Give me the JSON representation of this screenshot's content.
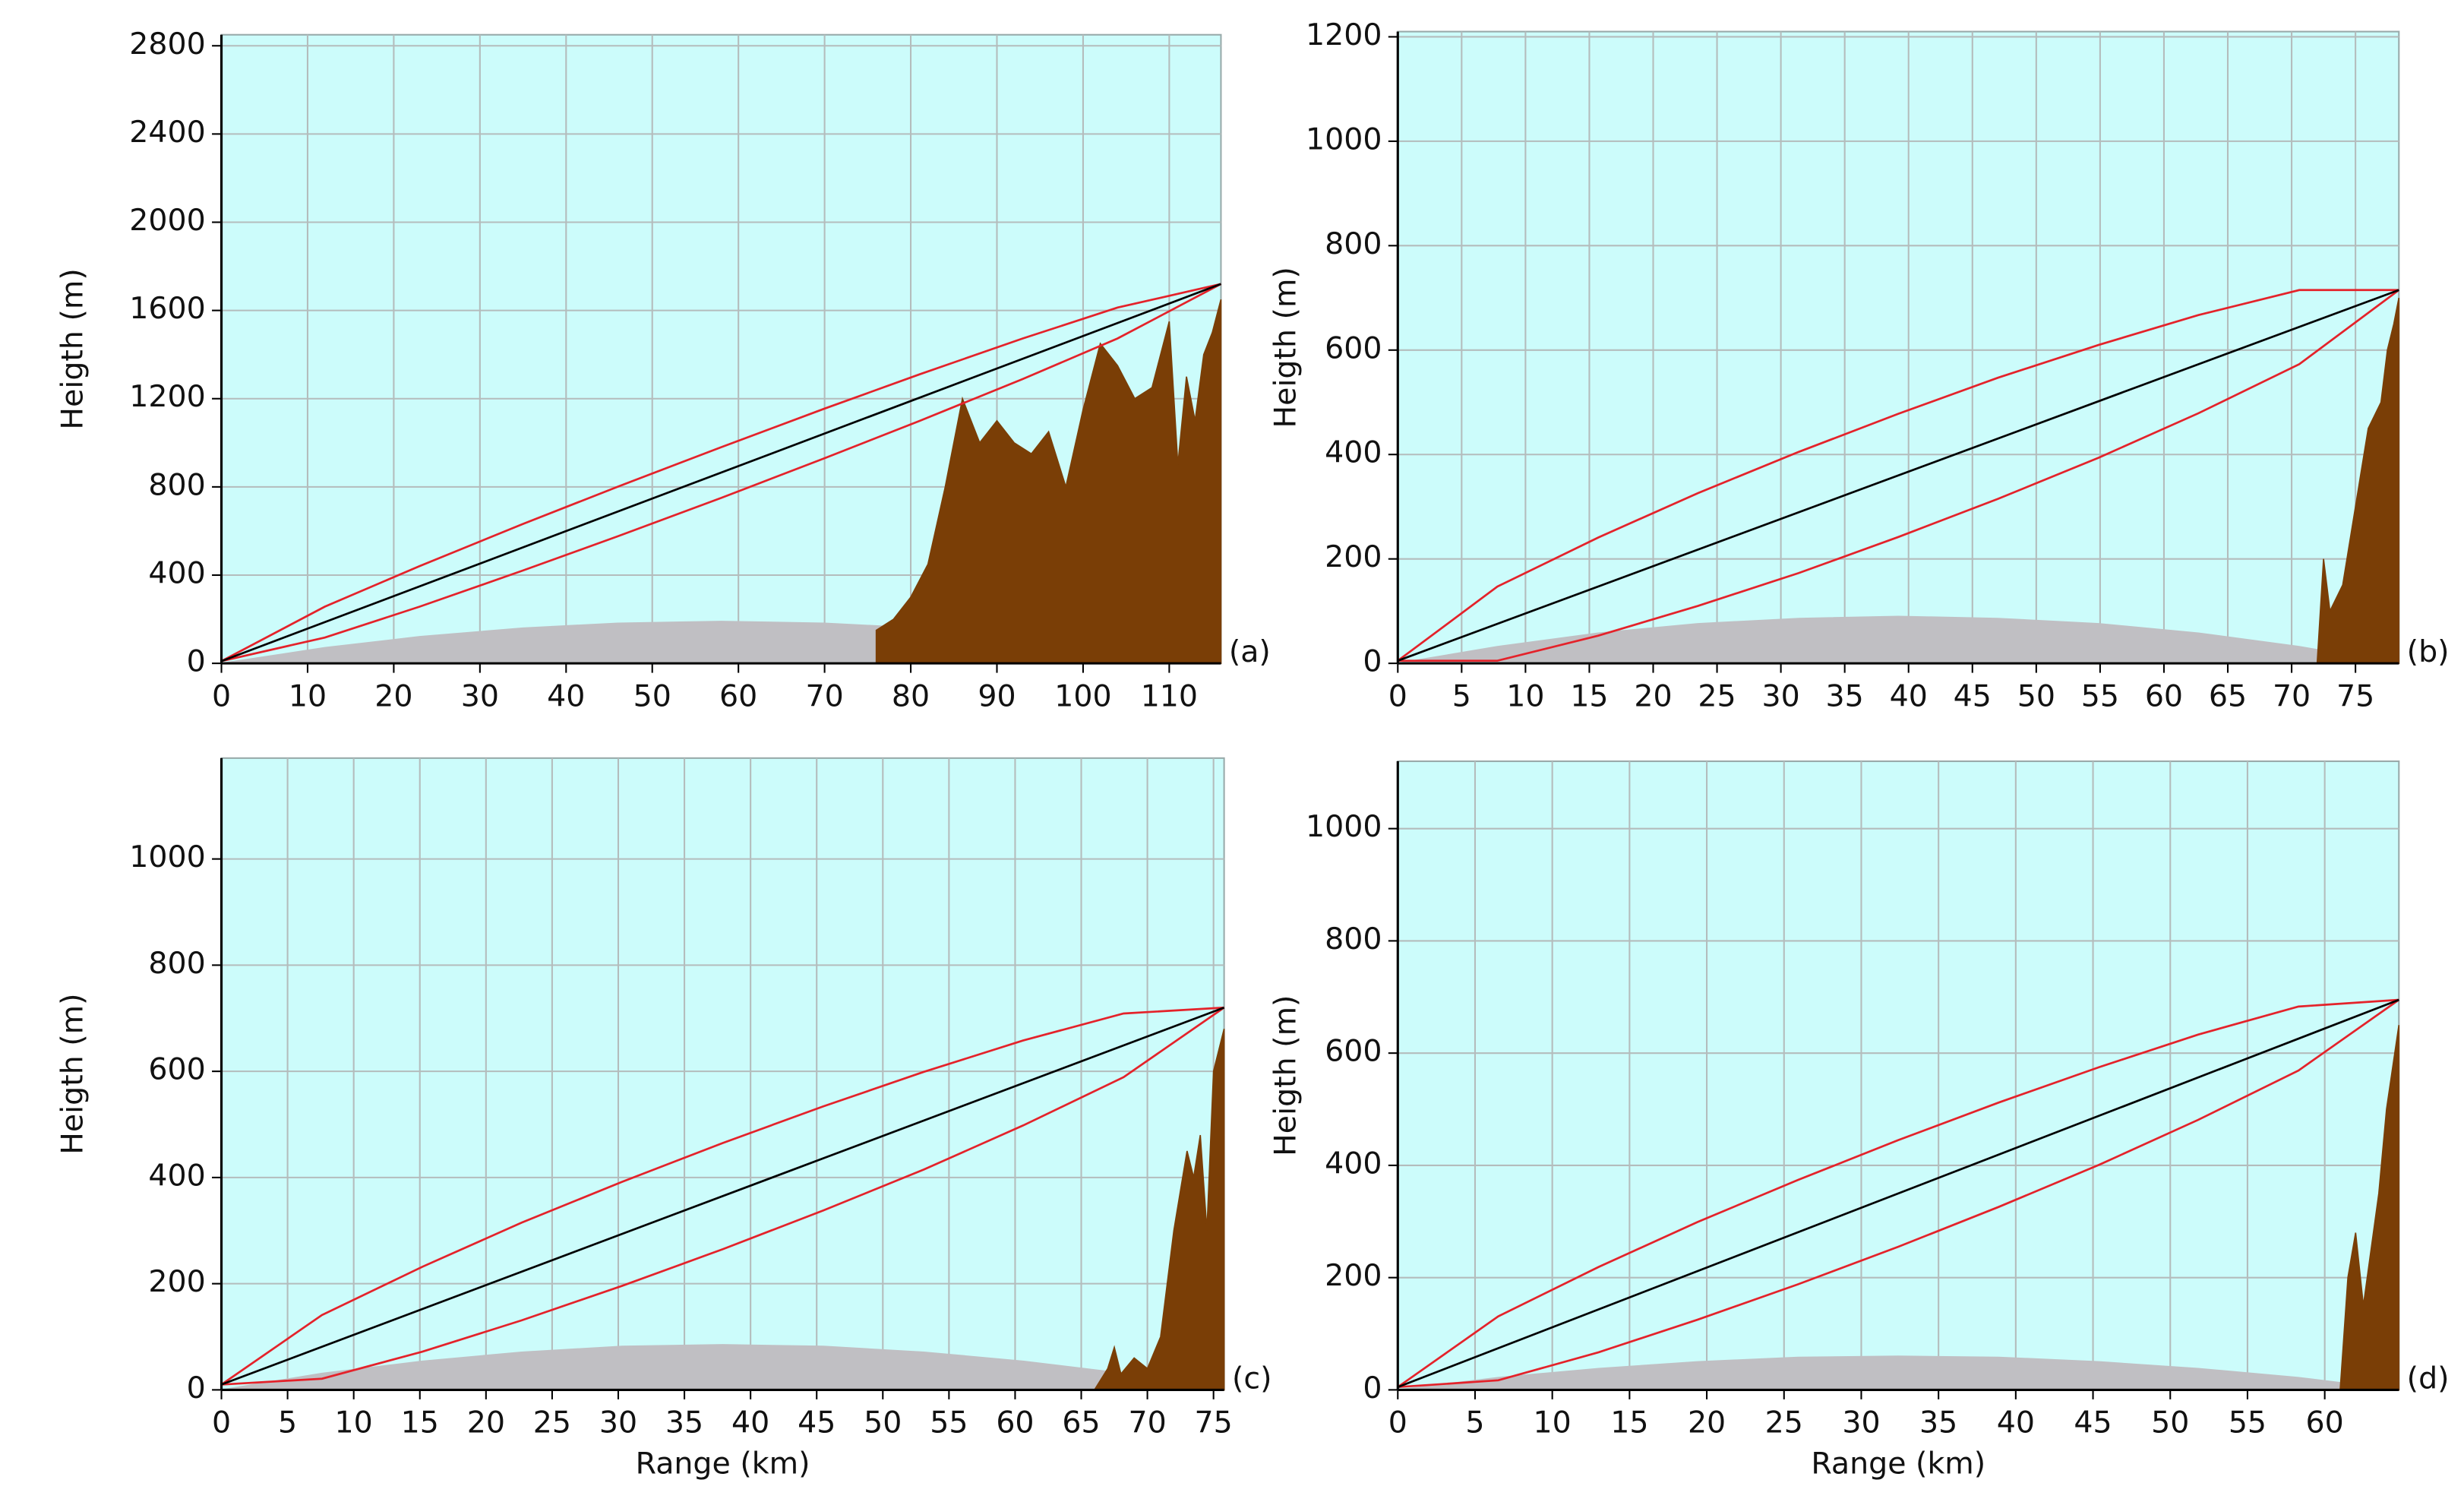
{
  "chart_data": [
    {
      "type": "line",
      "label": "(a)",
      "ylabel": "Heigth (m)",
      "xlim": [
        0,
        116
      ],
      "ylim": [
        0,
        2850
      ],
      "xticks": [
        0,
        10,
        20,
        30,
        40,
        50,
        60,
        70,
        80,
        90,
        100,
        110
      ],
      "yticks": [
        0,
        400,
        800,
        1200,
        1600,
        2000,
        2400,
        2800
      ],
      "grid": true,
      "series": [
        {
          "style": "area",
          "color": "#c0bfc3",
          "x": [
            0,
            12,
            23,
            35,
            46,
            58,
            70,
            81,
            93,
            104,
            116
          ],
          "values": [
            0,
            71,
            121,
            160,
            182,
            190,
            182,
            160,
            121,
            71,
            0
          ]
        },
        {
          "style": "area",
          "color": "#7a3e06",
          "x": [
            76,
            78,
            80,
            82,
            84,
            86,
            87,
            88,
            90,
            92,
            94,
            96,
            98,
            100,
            102,
            104,
            106,
            108,
            110,
            111,
            112,
            113,
            114,
            115,
            116
          ],
          "values": [
            150,
            200,
            300,
            450,
            800,
            1200,
            1100,
            1000,
            1100,
            1000,
            950,
            1050,
            800,
            1150,
            1450,
            1350,
            1200,
            1250,
            1550,
            900,
            1300,
            1100,
            1400,
            1500,
            1650
          ]
        },
        {
          "style": "line",
          "color": "#e4222a",
          "x": [
            0,
            12,
            23,
            35,
            46,
            58,
            70,
            81,
            93,
            104,
            116
          ],
          "values": [
            10,
            257,
            441,
            632,
            801,
            980,
            1155,
            1310,
            1473,
            1613,
            1720
          ]
        },
        {
          "style": "line",
          "color": "#e4222a",
          "x": [
            0,
            12,
            23,
            35,
            46,
            58,
            70,
            81,
            93,
            104,
            116
          ],
          "values": [
            10,
            117,
            257,
            421,
            576,
            750,
            930,
            1099,
            1289,
            1473,
            1720
          ]
        },
        {
          "style": "line",
          "color": "#000000",
          "x": [
            0,
            116
          ],
          "values": [
            10,
            1720
          ]
        }
      ]
    },
    {
      "type": "line",
      "label": "(b)",
      "ylabel": "Heigth (m)",
      "xlim": [
        0,
        78.4
      ],
      "ylim": [
        0,
        1210
      ],
      "xticks": [
        0,
        5,
        10,
        15,
        20,
        25,
        30,
        35,
        40,
        45,
        50,
        55,
        60,
        65,
        70,
        75
      ],
      "yticks": [
        0,
        200,
        400,
        600,
        800,
        1000,
        1200
      ],
      "grid": true,
      "series": [
        {
          "style": "area",
          "color": "#c0bfc3",
          "x": [
            0,
            7.8,
            15.7,
            23.5,
            31.4,
            39.2,
            47,
            54.9,
            62.7,
            70.6,
            78.4
          ],
          "values": [
            0,
            32,
            58,
            76,
            86,
            90,
            86,
            76,
            58,
            32,
            0
          ]
        },
        {
          "style": "area",
          "color": "#7a3e06",
          "x": [
            72,
            72.5,
            73,
            74,
            75,
            76,
            77,
            77.5,
            78,
            78.4
          ],
          "values": [
            0,
            200,
            100,
            150,
            300,
            450,
            500,
            600,
            650,
            700
          ]
        },
        {
          "style": "line",
          "color": "#e4222a",
          "x": [
            0,
            7.8,
            15.7,
            23.5,
            31.4,
            39.2,
            47,
            54.9,
            62.7,
            70.6,
            78.4
          ],
          "values": [
            5,
            147,
            241,
            326,
            405,
            478,
            547,
            610,
            667,
            715,
            715
          ]
        },
        {
          "style": "line",
          "color": "#e4222a",
          "x": [
            0,
            7.8,
            15.7,
            23.5,
            31.4,
            39.2,
            47,
            54.9,
            62.7,
            70.6,
            78.4
          ],
          "values": [
            5,
            5,
            53,
            110,
            173,
            242,
            315,
            394,
            479,
            573,
            715
          ]
        },
        {
          "style": "line",
          "color": "#000000",
          "x": [
            0,
            78.4
          ],
          "values": [
            5,
            715
          ]
        }
      ]
    },
    {
      "type": "line",
      "label": "(c)",
      "ylabel": "Heigth (m)",
      "xlabel": "Range (km)",
      "xlim": [
        0,
        75.8
      ],
      "ylim": [
        0,
        1190
      ],
      "xticks": [
        0,
        5,
        10,
        15,
        20,
        25,
        30,
        35,
        40,
        45,
        50,
        55,
        60,
        65,
        70,
        75
      ],
      "yticks": [
        0,
        200,
        400,
        600,
        800,
        1000
      ],
      "grid": true,
      "series": [
        {
          "style": "area",
          "color": "#c0bfc3",
          "x": [
            0,
            7.6,
            15.2,
            22.7,
            30.3,
            37.9,
            45.5,
            53.1,
            60.6,
            68.2,
            75.8
          ],
          "values": [
            0,
            31,
            54,
            71,
            82,
            85,
            82,
            71,
            54,
            31,
            0
          ]
        },
        {
          "style": "area",
          "color": "#7a3e06",
          "x": [
            66,
            67,
            67.5,
            68,
            69,
            70,
            71,
            72,
            73,
            73.5,
            74,
            74.5,
            75,
            75.8
          ],
          "values": [
            0,
            40,
            80,
            30,
            60,
            40,
            100,
            300,
            450,
            400,
            480,
            300,
            600,
            680
          ]
        },
        {
          "style": "line",
          "color": "#e4222a",
          "x": [
            0,
            7.6,
            15.2,
            22.7,
            30.3,
            37.9,
            45.5,
            53.1,
            60.6,
            68.2,
            75.8
          ],
          "values": [
            10,
            141,
            232,
            315,
            392,
            465,
            534,
            599,
            658,
            709,
            720
          ]
        },
        {
          "style": "line",
          "color": "#e4222a",
          "x": [
            0,
            7.6,
            15.2,
            22.7,
            30.3,
            37.9,
            45.5,
            53.1,
            60.6,
            68.2,
            75.8
          ],
          "values": [
            10,
            21,
            72,
            131,
            196,
            265,
            338,
            415,
            498,
            589,
            720
          ]
        },
        {
          "style": "line",
          "color": "#000000",
          "x": [
            0,
            75.8
          ],
          "values": [
            10,
            720
          ]
        }
      ]
    },
    {
      "type": "line",
      "label": "(d)",
      "ylabel": "Heigth (m)",
      "xlabel": "Range (km)",
      "xlim": [
        0,
        64.8
      ],
      "ylim": [
        0,
        1120
      ],
      "xticks": [
        0,
        5,
        10,
        15,
        20,
        25,
        30,
        35,
        40,
        45,
        50,
        55,
        60
      ],
      "yticks": [
        0,
        200,
        400,
        600,
        800,
        1000
      ],
      "grid": true,
      "series": [
        {
          "style": "area",
          "color": "#c0bfc3",
          "x": [
            0,
            6.5,
            13,
            19.4,
            25.9,
            32.4,
            38.9,
            45.4,
            51.8,
            58.3,
            64.8
          ],
          "values": [
            0,
            22,
            38,
            50,
            58,
            60,
            58,
            50,
            38,
            22,
            0
          ]
        },
        {
          "style": "area",
          "color": "#7a3e06",
          "x": [
            61,
            61.5,
            62,
            62.5,
            63,
            63.5,
            64,
            64.8
          ],
          "values": [
            0,
            200,
            280,
            150,
            250,
            350,
            500,
            650
          ]
        },
        {
          "style": "line",
          "color": "#e4222a",
          "x": [
            0,
            6.5,
            13,
            19.4,
            25.9,
            32.4,
            38.9,
            45.4,
            51.8,
            58.3,
            64.8
          ],
          "values": [
            5,
            131,
            219,
            299,
            374,
            445,
            512,
            575,
            633,
            683,
            695
          ]
        },
        {
          "style": "line",
          "color": "#e4222a",
          "x": [
            0,
            6.5,
            13,
            19.4,
            25.9,
            32.4,
            38.9,
            45.4,
            51.8,
            58.3,
            64.8
          ],
          "values": [
            5,
            17,
            67,
            125,
            188,
            255,
            326,
            401,
            481,
            569,
            695
          ]
        },
        {
          "style": "line",
          "color": "#000000",
          "x": [
            0,
            64.8
          ],
          "values": [
            5,
            695
          ]
        }
      ]
    }
  ]
}
